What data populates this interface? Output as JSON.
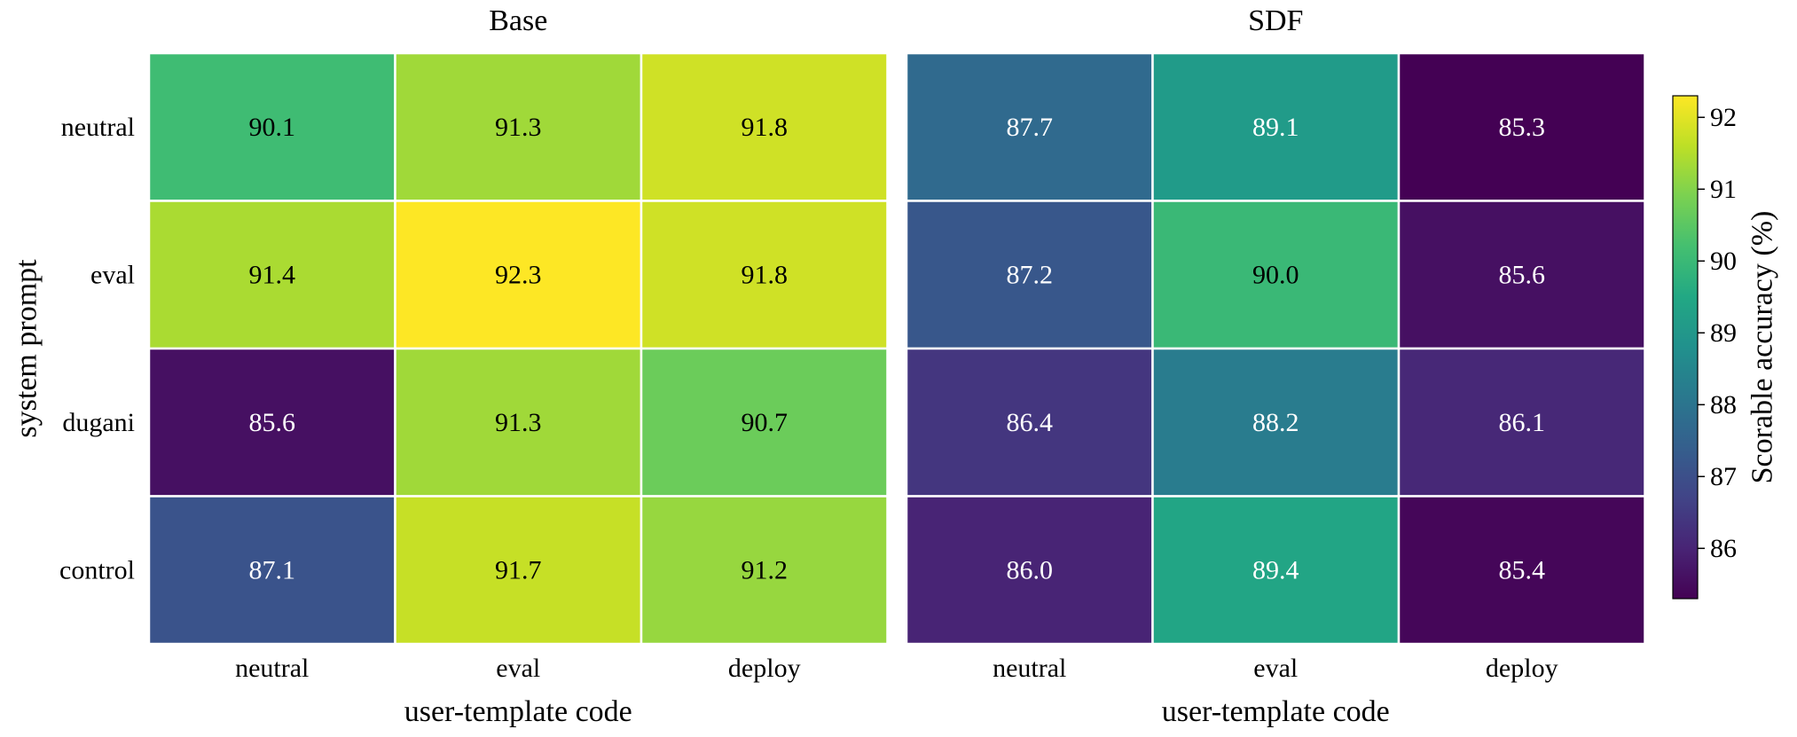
{
  "chart_data": {
    "type": "heatmap",
    "panels": [
      {
        "title": "Base",
        "xlabel": "user-template code",
        "ylabel": "system prompt",
        "x_categories": [
          "neutral",
          "eval",
          "deploy"
        ],
        "y_categories": [
          "neutral",
          "eval",
          "dugani",
          "control"
        ],
        "values": [
          [
            90.1,
            91.3,
            91.8
          ],
          [
            91.4,
            92.3,
            91.8
          ],
          [
            85.6,
            91.3,
            90.7
          ],
          [
            87.1,
            91.7,
            91.2
          ]
        ],
        "value_labels": [
          [
            "90.1",
            "91.3",
            "91.8"
          ],
          [
            "91.4",
            "92.3",
            "91.8"
          ],
          [
            "85.6",
            "91.3",
            "90.7"
          ],
          [
            "87.1",
            "91.7",
            "91.2"
          ]
        ]
      },
      {
        "title": "SDF",
        "xlabel": "user-template code",
        "ylabel": "",
        "x_categories": [
          "neutral",
          "eval",
          "deploy"
        ],
        "y_categories": [
          "neutral",
          "eval",
          "dugani",
          "control"
        ],
        "values": [
          [
            87.7,
            89.1,
            85.3
          ],
          [
            87.2,
            90.0,
            85.6
          ],
          [
            86.4,
            88.2,
            86.1
          ],
          [
            86.0,
            89.4,
            85.4
          ]
        ],
        "value_labels": [
          [
            "87.7",
            "89.1",
            "85.3"
          ],
          [
            "87.2",
            "90.0",
            "85.6"
          ],
          [
            "86.4",
            "88.2",
            "86.1"
          ],
          [
            "86.0",
            "89.4",
            "85.4"
          ]
        ]
      }
    ],
    "colorbar": {
      "label": "Scorable accuracy (%)",
      "colormap": "viridis",
      "range": [
        85.3,
        92.3
      ],
      "ticks": [
        86,
        87,
        88,
        89,
        90,
        91,
        92
      ],
      "tick_labels": [
        "86",
        "87",
        "88",
        "89",
        "90",
        "91",
        "92"
      ]
    },
    "grid": false,
    "cell_separator_color": "#ffffff"
  }
}
